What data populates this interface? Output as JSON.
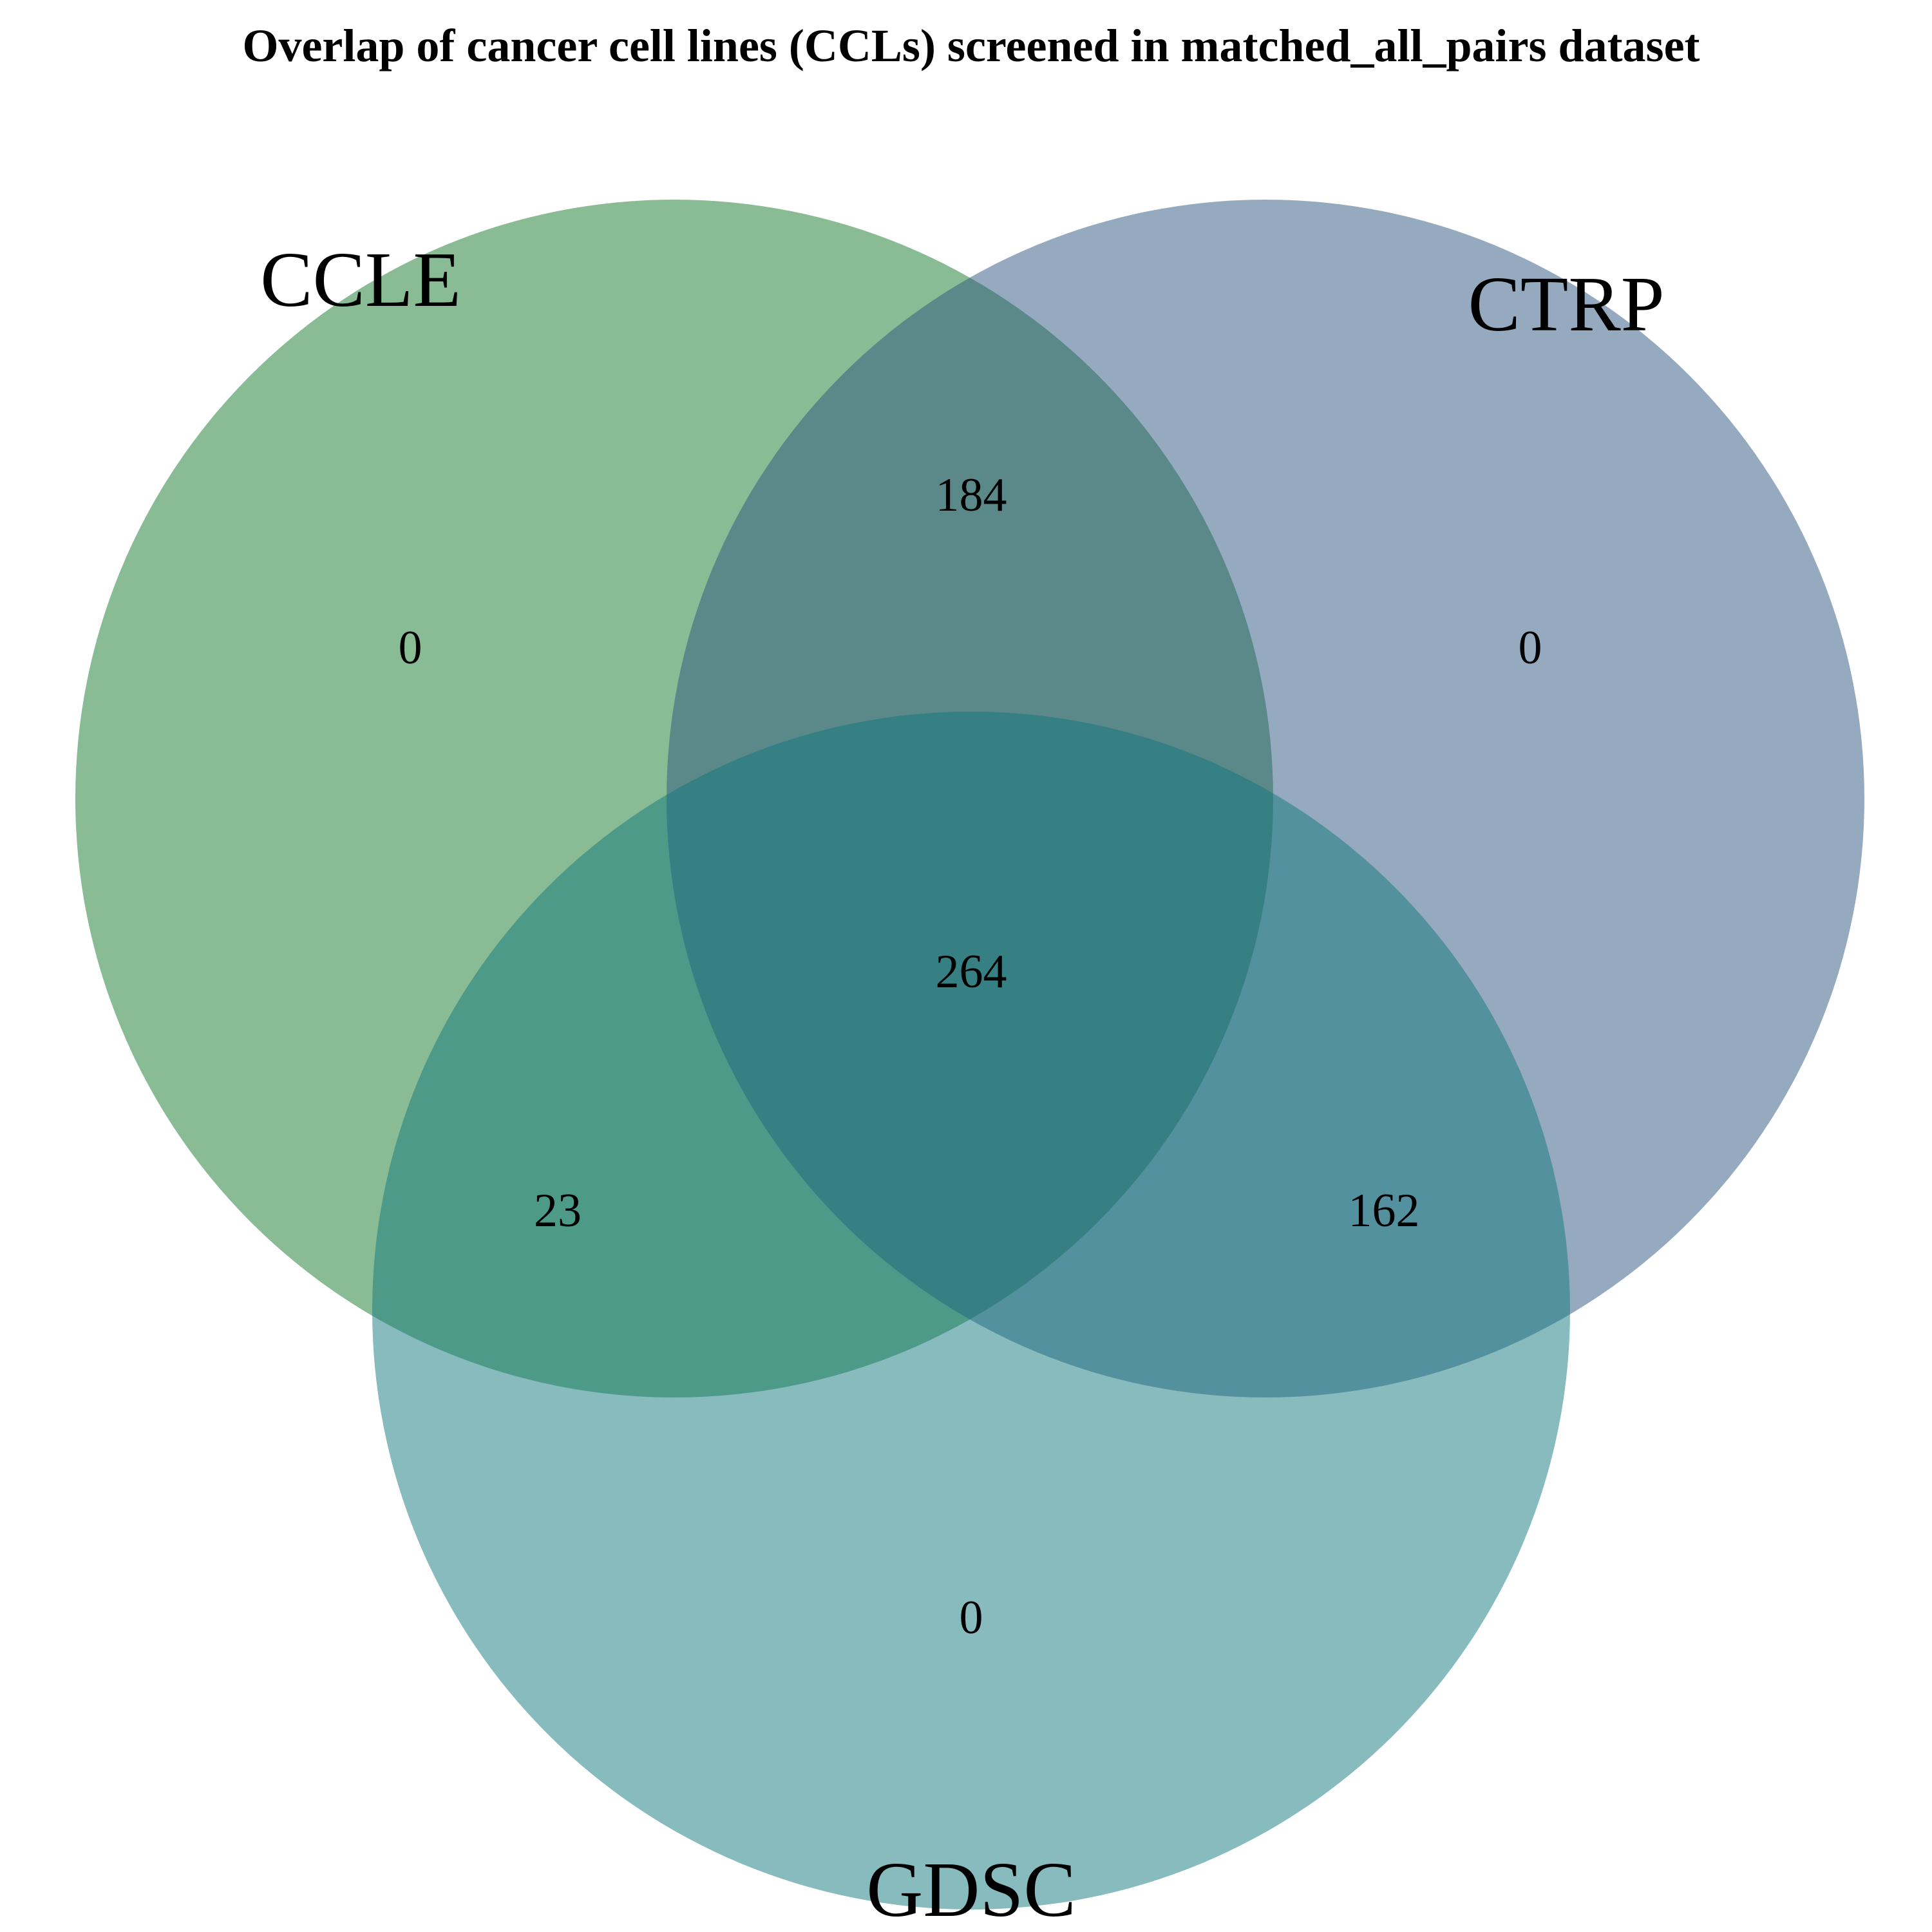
{
  "title": "Overlap of cancer cell lines (CCLs) screened in matched_all_pairs dataset",
  "sets": {
    "ccle": {
      "label": "CCLE",
      "color": "#3a8f4e"
    },
    "ctrp": {
      "label": "CTRP",
      "color": "#2e5580"
    },
    "gdsc": {
      "label": "GDSC",
      "color": "#12787e"
    }
  },
  "regions": {
    "ccle_only": "0",
    "ctrp_only": "0",
    "gdsc_only": "0",
    "ccle_ctrp": "184",
    "ccle_gdsc": "23",
    "ctrp_gdsc": "162",
    "all_three": "264"
  },
  "chart_data": {
    "type": "venn",
    "title": "Overlap of cancer cell lines (CCLs) screened in matched_all_pairs dataset",
    "sets": [
      "CCLE",
      "CTRP",
      "GDSC"
    ],
    "regions": [
      {
        "sets": [
          "CCLE"
        ],
        "value": 0
      },
      {
        "sets": [
          "CTRP"
        ],
        "value": 0
      },
      {
        "sets": [
          "GDSC"
        ],
        "value": 0
      },
      {
        "sets": [
          "CCLE",
          "CTRP"
        ],
        "value": 184
      },
      {
        "sets": [
          "CCLE",
          "GDSC"
        ],
        "value": 23
      },
      {
        "sets": [
          "CTRP",
          "GDSC"
        ],
        "value": 162
      },
      {
        "sets": [
          "CCLE",
          "CTRP",
          "GDSC"
        ],
        "value": 264
      }
    ]
  }
}
